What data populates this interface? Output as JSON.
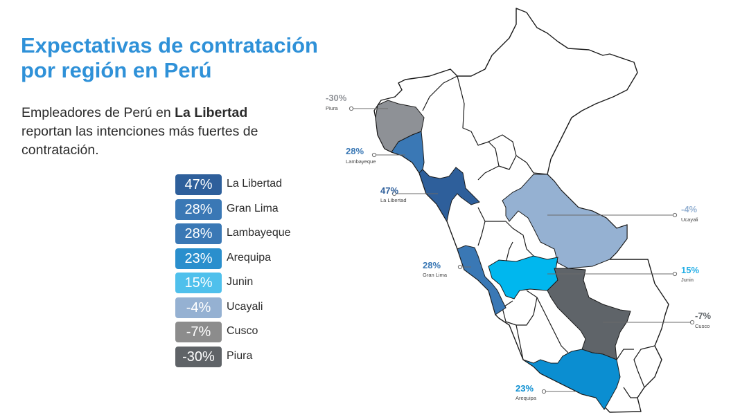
{
  "title_line1": "Expectativas de contratación",
  "title_line2": "por región en Perú",
  "subtitle_pre": "Empleadores de Perú en ",
  "subtitle_bold": "La Libertad",
  "subtitle_post": " reportan las intenciones más fuertes de contratación.",
  "legend": [
    {
      "value": "47%",
      "label": "La Libertad",
      "color": "#2e5f9b"
    },
    {
      "value": "28%",
      "label": "Gran Lima",
      "color": "#3a78b5"
    },
    {
      "value": "28%",
      "label": "Lambayeque",
      "color": "#3a78b5"
    },
    {
      "value": "23%",
      "label": "Arequipa",
      "color": "#2a8fcd"
    },
    {
      "value": "15%",
      "label": "Junin",
      "color": "#4fc0ec"
    },
    {
      "value": "-4%",
      "label": "Ucayali",
      "color": "#95b1d2"
    },
    {
      "value": "-7%",
      "label": "Cusco",
      "color": "#8c8c8c"
    },
    {
      "value": "-30%",
      "label": "Piura",
      "color": "#5f6367"
    }
  ],
  "map": {
    "regions": {
      "piura": {
        "name": "Piura",
        "value": "-30%",
        "color": "#8e9196"
      },
      "lambayeque": {
        "name": "Lambayeque",
        "value": "28%",
        "color": "#3a78b5"
      },
      "la_libertad": {
        "name": "La Libertad",
        "value": "47%",
        "color": "#2e5f9b"
      },
      "ucayali": {
        "name": "Ucayali",
        "value": "-4%",
        "color": "#95b1d2"
      },
      "gran_lima": {
        "name": "Gran Lima",
        "value": "28%",
        "color": "#3a78b5"
      },
      "junin": {
        "name": "Junin",
        "value": "15%",
        "color": "#00b7ee"
      },
      "cusco": {
        "name": "Cusco",
        "value": "-7%",
        "color": "#5f6469"
      },
      "arequipa": {
        "name": "Arequipa",
        "value": "23%",
        "color": "#0b8ed1"
      }
    }
  }
}
